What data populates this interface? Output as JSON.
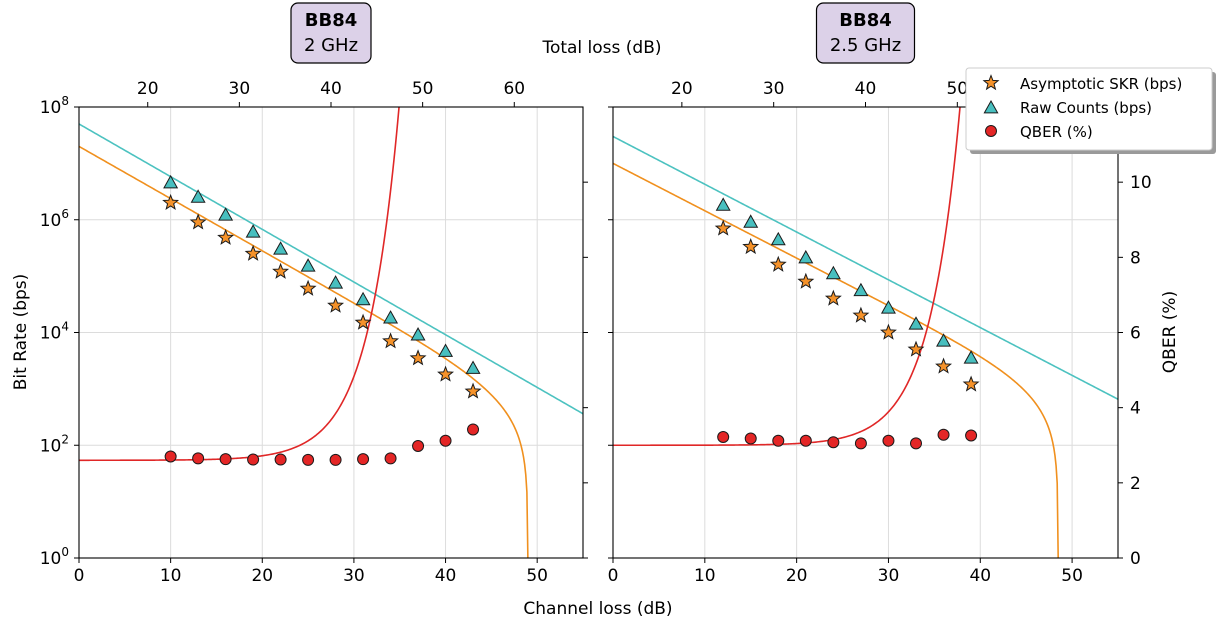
{
  "chart_data": {
    "type": "scatter",
    "ylabel": "Bit Rate (bps)",
    "y2label": "QBER (%)",
    "xlabel": "Channel loss (dB)",
    "x2label": "Total loss (dB)",
    "xlim": [
      0,
      55
    ],
    "x2lim": [
      12.5,
      67.5
    ],
    "ylim": [
      1,
      100000000
    ],
    "yscale": "log",
    "y2lim": [
      0,
      12
    ],
    "yticks": [
      {
        "value": 1,
        "base": "10",
        "exp": "0"
      },
      {
        "value": 100,
        "base": "10",
        "exp": "2"
      },
      {
        "value": 10000,
        "base": "10",
        "exp": "4"
      },
      {
        "value": 1000000,
        "base": "10",
        "exp": "6"
      },
      {
        "value": 100000000,
        "base": "10",
        "exp": "8"
      }
    ],
    "y2ticks": [
      "0",
      "2",
      "4",
      "6",
      "8",
      "10"
    ],
    "xticks": [
      "0",
      "10",
      "20",
      "30",
      "40",
      "50"
    ],
    "grid": true,
    "colors": {
      "skr_line": "#f0901e",
      "raw_line": "#4cc2c0",
      "qber_line": "#e02727",
      "skr_marker": "#f5922a",
      "raw_marker": "#48bfbf",
      "qber_marker": "#e42626",
      "grid": "#dcdcdc",
      "badge_fill": "#dcd1e8"
    },
    "legend": {
      "position": "top-right",
      "entries": [
        {
          "label": "Asymptotic SKR (bps)",
          "marker": "star"
        },
        {
          "label": "Raw Counts (bps)",
          "marker": "triangle"
        },
        {
          "label": "QBER (%)",
          "marker": "circle"
        }
      ]
    },
    "panels": [
      {
        "badge": {
          "protocol": "BB84",
          "rate": "2 GHz"
        },
        "x2ticks": [
          "20",
          "30",
          "40",
          "50",
          "60"
        ],
        "raw_fit": {
          "y0": 50000000,
          "slope_db_per_decade": 10.7
        },
        "skr_fit": {
          "y0": 20000000,
          "slope_db_per_decade": 10.8,
          "cutoff_db": 49
        },
        "qber_fit": {
          "base": 2.6,
          "amp": 0.00035,
          "rate": 0.292
        },
        "skr_points": {
          "x": [
            10,
            13,
            16,
            19,
            22,
            25,
            28,
            31,
            34,
            37,
            40,
            43
          ],
          "y": [
            2000000,
            900000,
            480000,
            250000,
            120000,
            60000,
            30000,
            15000,
            7000,
            3500,
            1800,
            900
          ]
        },
        "raw_points": {
          "x": [
            10,
            13,
            16,
            19,
            22,
            25,
            28,
            31,
            34,
            37,
            40,
            43
          ],
          "y": [
            4500000,
            2500000,
            1200000,
            600000,
            300000,
            150000,
            75000,
            38000,
            18000,
            9000,
            4600,
            2300
          ]
        },
        "qber_points": {
          "x": [
            10,
            13,
            16,
            19,
            22,
            25,
            28,
            31,
            34,
            37,
            40,
            43
          ],
          "y": [
            2.7,
            2.65,
            2.63,
            2.62,
            2.62,
            2.61,
            2.61,
            2.63,
            2.65,
            2.98,
            3.12,
            3.42
          ]
        }
      },
      {
        "badge": {
          "protocol": "BB84",
          "rate": "2.5 GHz"
        },
        "x2ticks": [
          "20",
          "30",
          "40",
          "50"
        ],
        "raw_fit": {
          "y0": 30000000,
          "slope_db_per_decade": 11.8
        },
        "skr_fit": {
          "y0": 10000000,
          "slope_db_per_decade": 11.9,
          "cutoff_db": 48.5
        },
        "qber_fit": {
          "base": 3.0,
          "amp": 0.00012,
          "rate": 0.297
        },
        "skr_points": {
          "x": [
            12,
            15,
            18,
            21,
            24,
            27,
            30,
            33,
            36,
            39
          ],
          "y": [
            700000,
            330000,
            160000,
            80000,
            40000,
            20000,
            10000,
            5000,
            2500,
            1200
          ]
        },
        "raw_points": {
          "x": [
            12,
            15,
            18,
            21,
            24,
            27,
            30,
            33,
            36,
            39
          ],
          "y": [
            1800000,
            900000,
            440000,
            210000,
            110000,
            55000,
            27000,
            14000,
            7000,
            3500
          ]
        },
        "qber_points": {
          "x": [
            12,
            15,
            18,
            21,
            24,
            27,
            30,
            33,
            36,
            39
          ],
          "y": [
            3.22,
            3.18,
            3.12,
            3.12,
            3.08,
            3.05,
            3.12,
            3.05,
            3.28,
            3.26
          ]
        }
      }
    ]
  }
}
